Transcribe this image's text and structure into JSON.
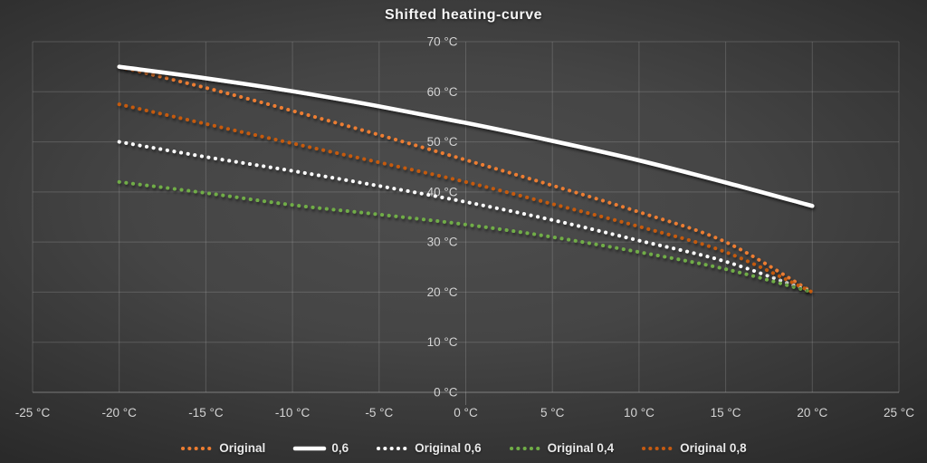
{
  "chart_data": {
    "type": "line",
    "title": "Shifted heating-curve",
    "xlabel": "",
    "ylabel": "",
    "x_unit": "°C",
    "y_unit": "°C",
    "xlim": [
      -25,
      25
    ],
    "ylim": [
      0,
      70
    ],
    "grid": true,
    "legend_position": "bottom",
    "x_ticks": [
      -25,
      -20,
      -15,
      -10,
      -5,
      0,
      5,
      10,
      15,
      20,
      25
    ],
    "x_tick_labels": [
      "-25 °C",
      "-20 °C",
      "-15 °C",
      "-10 °C",
      "-5 °C",
      "0 °C",
      "5 °C",
      "10 °C",
      "15 °C",
      "20 °C",
      "25 °C"
    ],
    "y_ticks": [
      0,
      10,
      20,
      30,
      40,
      50,
      60,
      70
    ],
    "y_tick_labels": [
      "0 °C",
      "10 °C",
      "20 °C",
      "30 °C",
      "40 °C",
      "50 °C",
      "60 °C",
      "70 °C"
    ],
    "x": [
      -20,
      -15,
      -10,
      -5,
      0,
      5,
      10,
      15,
      20
    ],
    "series": [
      {
        "name": "Original",
        "color": "#ED7D31",
        "style": "dotted",
        "values": [
          65,
          60.8,
          56.2,
          51.4,
          46.4,
          41.3,
          36.0,
          30.0,
          20.0
        ]
      },
      {
        "name": "0,6",
        "color": "#FFFFFF",
        "style": "solid",
        "values": [
          65,
          62.7,
          60.1,
          57.1,
          53.8,
          50.2,
          46.3,
          41.9,
          37.2
        ]
      },
      {
        "name": "Original 0,6",
        "color": "#FFFFFF",
        "style": "dotted",
        "values": [
          50,
          47.0,
          44.2,
          41.2,
          38.0,
          34.4,
          30.3,
          26.1,
          20.0
        ]
      },
      {
        "name": "Original 0,4",
        "color": "#70AD47",
        "style": "dotted",
        "values": [
          42,
          39.8,
          37.4,
          35.5,
          33.5,
          31.0,
          28.0,
          24.6,
          20.0
        ]
      },
      {
        "name": "Original 0,8",
        "color": "#C55A11",
        "style": "dotted",
        "values": [
          57.5,
          53.6,
          49.7,
          45.9,
          42.0,
          37.6,
          33.1,
          28.0,
          20.0
        ]
      }
    ],
    "colors": {
      "background_center": "#4d4d4d",
      "background_edge": "#242424",
      "gridline": "#c8c8c8",
      "axis_line": "#d0d0d0",
      "tick_text": "#d4d4d4",
      "title_text": "#f5f5f5",
      "legend_text": "#e9e9e9"
    }
  }
}
